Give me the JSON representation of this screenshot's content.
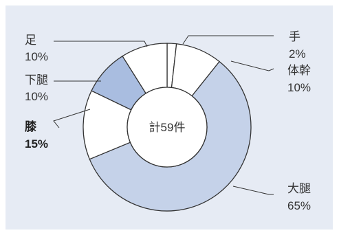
{
  "chart_data": {
    "type": "pie",
    "variant": "donut",
    "center_label": "計59件",
    "slices": [
      {
        "name": "手",
        "value": 2,
        "value_label": "2%",
        "color": "#ffffff",
        "emphasis": false
      },
      {
        "name": "体幹",
        "value": 10,
        "value_label": "10%",
        "color": "#ffffff",
        "emphasis": false
      },
      {
        "name": "大腿",
        "value": 65,
        "value_label": "65%",
        "color": "#c5d2e9",
        "emphasis": false
      },
      {
        "name": "膝",
        "value": 15,
        "value_label": "15%",
        "color": "#ffffff",
        "emphasis": true
      },
      {
        "name": "下腿",
        "value": 10,
        "value_label": "10%",
        "color": "#a9bde0",
        "emphasis": false
      },
      {
        "name": "足",
        "value": 10,
        "value_label": "10%",
        "color": "#ffffff",
        "emphasis": false
      }
    ],
    "legend": "none"
  },
  "colors": {
    "panel_background": "#e6ebf4",
    "stroke": "#333333"
  }
}
